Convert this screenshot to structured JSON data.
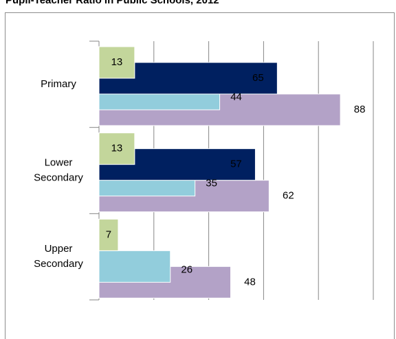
{
  "chart_data": {
    "type": "bar",
    "orientation": "horizontal",
    "title": "Pupil-Teacher Ratio in Public Schools, 2012",
    "categories": [
      "Primary",
      "Lower Secondary",
      "Upper Secondary"
    ],
    "series": [
      {
        "color": "#c3d69b",
        "values": [
          13,
          13,
          7
        ],
        "label_color": "#000000"
      },
      {
        "color": "#002060",
        "values": [
          65,
          57,
          null
        ],
        "label_color": "#f0c000"
      },
      {
        "color": "#92cddc",
        "values": [
          44,
          35,
          26
        ],
        "label_color": "#000000"
      },
      {
        "color": "#b3a2c7",
        "values": [
          88,
          62,
          48
        ],
        "label_color": "#000000"
      }
    ],
    "xlim": [
      0,
      100
    ],
    "xticks": [
      0,
      20,
      40,
      60,
      80,
      100
    ],
    "grid": true
  }
}
